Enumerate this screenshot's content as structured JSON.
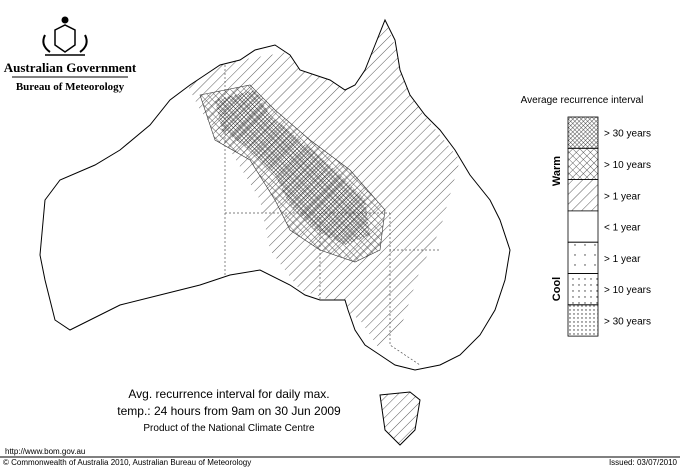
{
  "header": {
    "government": "Australian Government",
    "bureau": "Bureau of Meteorology"
  },
  "legend": {
    "title": "Average recurrence interval",
    "warm": "Warm",
    "cool": "Cool",
    "items": [
      "> 30 years",
      "> 10 years",
      "> 1 year",
      "< 1 year",
      "> 1 year",
      "> 10 years",
      "> 30 years"
    ]
  },
  "caption": {
    "lines": [
      "Avg. recurrence interval for daily max.",
      "temp.: 24 hours from 9am on 30 Jun 2009",
      "Product of the National Climate Centre"
    ]
  },
  "footer": {
    "url": "http://www.bom.gov.au",
    "copyright": "© Commonwealth of Australia 2010, Australian Bureau of Meteorology",
    "issued": "Issued: 03/07/2010"
  }
}
